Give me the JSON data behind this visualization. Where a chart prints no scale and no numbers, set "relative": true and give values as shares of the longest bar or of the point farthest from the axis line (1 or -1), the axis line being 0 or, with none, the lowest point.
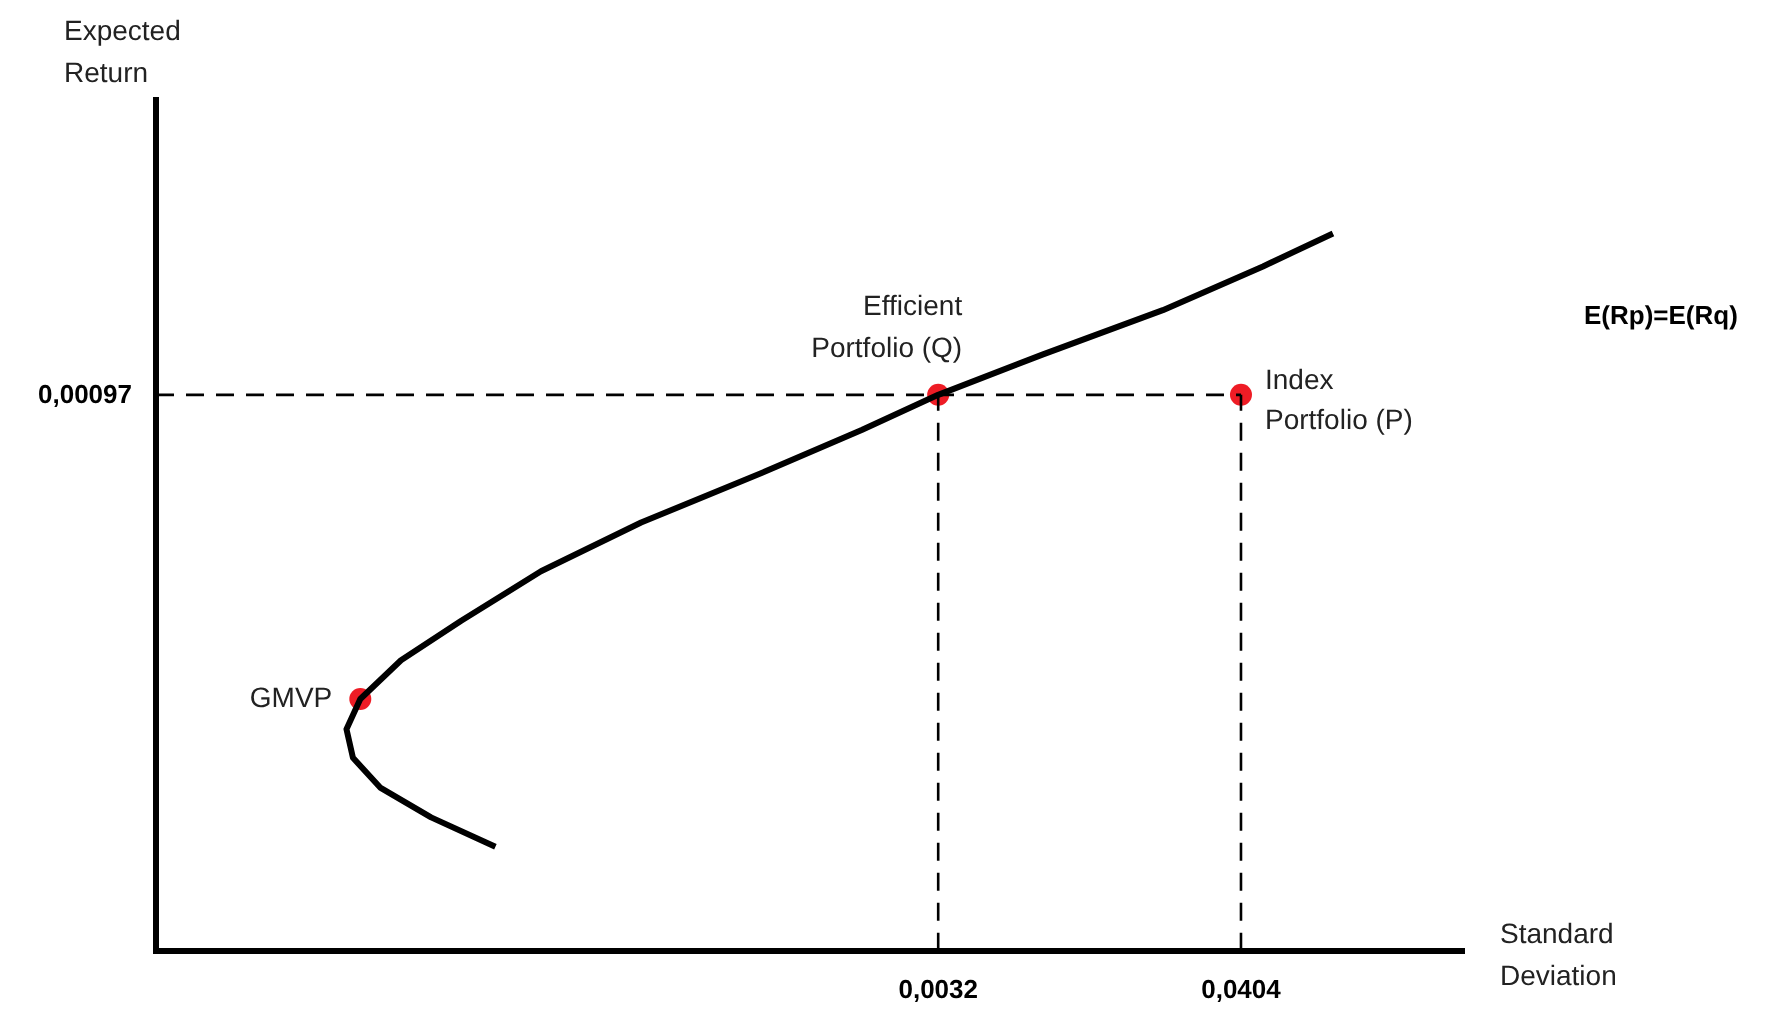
{
  "chart_data": {
    "type": "line",
    "xlabel": "Standard Deviation",
    "relative": true,
    "xlim": [
      -0.0929,
      0.0678
    ],
    "xticks": [
      {
        "value": 0.0032,
        "label": "0,0032"
      },
      {
        "value": 0.0404,
        "label": "0,0404"
      }
    ],
    "series": [
      {
        "color": "#000000",
        "marker": "none",
        "x": [
          -0.0512,
          -0.0591,
          -0.0653,
          -0.0687,
          -0.0695,
          -0.0678,
          -0.0628,
          -0.0554,
          -0.0456,
          -0.0333,
          -0.0185,
          -0.0062,
          0.0032,
          0.016,
          0.0308,
          0.0431,
          0.0517
        ],
        "values": [
          0.145,
          0.186,
          0.227,
          0.269,
          0.309,
          0.351,
          0.405,
          0.46,
          0.529,
          0.597,
          0.666,
          0.726,
          0.775,
          0.831,
          0.893,
          0.954,
          1
        ]
      },
      {
        "type": "scatter",
        "color": "#ee1c25",
        "marker": "circle",
        "x": [
          -0.0678,
          0.0032,
          0.0404
        ],
        "values": [
          0.351,
          0.775,
          0.775
        ]
      }
    ],
    "ref_lines": [
      {
        "axis": "x",
        "value": 0.0032,
        "line_style": "dashed",
        "color": "#000000"
      },
      {
        "axis": "x",
        "value": 0.0404,
        "line_style": "dashed",
        "color": "#000000"
      },
      {
        "axis": "y",
        "value": 0.775,
        "line_style": "dashed",
        "color": "#000000"
      }
    ],
    "annotations": [
      {
        "text": "GMVP",
        "x": -0.0678,
        "y": 0.351
      },
      {
        "text": "Efficient Portfolio (Q)",
        "x": 0.0032,
        "y": 0.775
      },
      {
        "text": "Index Portfolio (P)",
        "x": 0.0404,
        "y": 0.775
      },
      "Expected Return",
      "0,00097",
      "E(Rp)=E(Rq)"
    ],
    "grid": false,
    "legend": false
  }
}
